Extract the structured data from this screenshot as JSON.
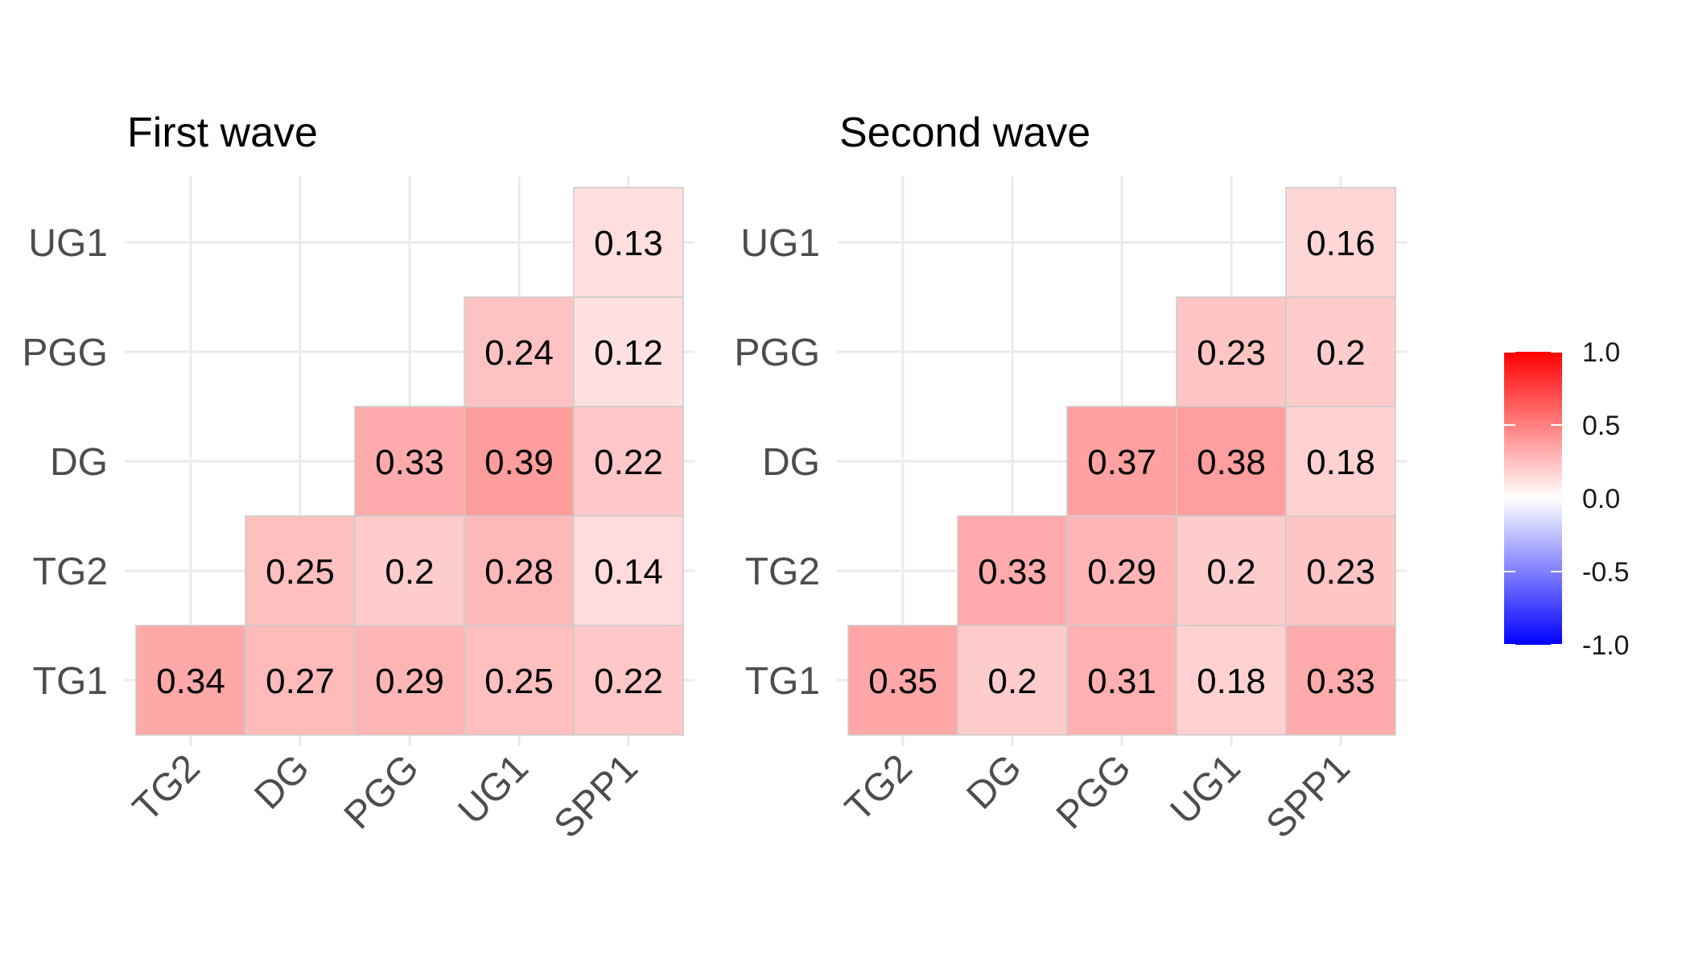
{
  "chart_data": [
    {
      "type": "heatmap",
      "title": "First wave",
      "x_categories": [
        "TG2",
        "DG",
        "PGG",
        "UG1",
        "SPP1"
      ],
      "y_categories": [
        "TG1",
        "TG2",
        "DG",
        "PGG",
        "UG1"
      ],
      "cells": [
        {
          "x": "TG2",
          "y": "TG1",
          "value": 0.34
        },
        {
          "x": "DG",
          "y": "TG1",
          "value": 0.27
        },
        {
          "x": "PGG",
          "y": "TG1",
          "value": 0.29
        },
        {
          "x": "UG1",
          "y": "TG1",
          "value": 0.25
        },
        {
          "x": "SPP1",
          "y": "TG1",
          "value": 0.22
        },
        {
          "x": "DG",
          "y": "TG2",
          "value": 0.25
        },
        {
          "x": "PGG",
          "y": "TG2",
          "value": 0.2
        },
        {
          "x": "UG1",
          "y": "TG2",
          "value": 0.28
        },
        {
          "x": "SPP1",
          "y": "TG2",
          "value": 0.14
        },
        {
          "x": "PGG",
          "y": "DG",
          "value": 0.33
        },
        {
          "x": "UG1",
          "y": "DG",
          "value": 0.39
        },
        {
          "x": "SPP1",
          "y": "DG",
          "value": 0.22
        },
        {
          "x": "UG1",
          "y": "PGG",
          "value": 0.24
        },
        {
          "x": "SPP1",
          "y": "PGG",
          "value": 0.12
        },
        {
          "x": "SPP1",
          "y": "UG1",
          "value": 0.13
        }
      ]
    },
    {
      "type": "heatmap",
      "title": "Second wave",
      "x_categories": [
        "TG2",
        "DG",
        "PGG",
        "UG1",
        "SPP1"
      ],
      "y_categories": [
        "TG1",
        "TG2",
        "DG",
        "PGG",
        "UG1"
      ],
      "cells": [
        {
          "x": "TG2",
          "y": "TG1",
          "value": 0.35
        },
        {
          "x": "DG",
          "y": "TG1",
          "value": 0.2
        },
        {
          "x": "PGG",
          "y": "TG1",
          "value": 0.31
        },
        {
          "x": "UG1",
          "y": "TG1",
          "value": 0.18
        },
        {
          "x": "SPP1",
          "y": "TG1",
          "value": 0.33
        },
        {
          "x": "DG",
          "y": "TG2",
          "value": 0.33
        },
        {
          "x": "PGG",
          "y": "TG2",
          "value": 0.29
        },
        {
          "x": "UG1",
          "y": "TG2",
          "value": 0.2
        },
        {
          "x": "SPP1",
          "y": "TG2",
          "value": 0.23
        },
        {
          "x": "PGG",
          "y": "DG",
          "value": 0.37
        },
        {
          "x": "UG1",
          "y": "DG",
          "value": 0.38
        },
        {
          "x": "SPP1",
          "y": "DG",
          "value": 0.18
        },
        {
          "x": "UG1",
          "y": "PGG",
          "value": 0.23
        },
        {
          "x": "SPP1",
          "y": "PGG",
          "value": 0.2
        },
        {
          "x": "SPP1",
          "y": "UG1",
          "value": 0.16
        }
      ]
    }
  ],
  "legend": {
    "type": "colorbar",
    "range": [
      -1.0,
      1.0
    ],
    "ticks": [
      "1.0",
      "0.5",
      "0.0",
      "-0.5",
      "-1.0"
    ],
    "tick_values": [
      1.0,
      0.5,
      0.0,
      -0.5,
      -1.0
    ],
    "colors": {
      "low": "#0000FF",
      "mid": "#FFFFFF",
      "high": "#FF0000"
    }
  },
  "styles": {
    "grid_color": "#EBEBEB",
    "cell_border_color": "#CCCCCC",
    "axis_text_color": "#4D4D4D",
    "value_text_color": "#000000",
    "title_color": "#000000"
  }
}
